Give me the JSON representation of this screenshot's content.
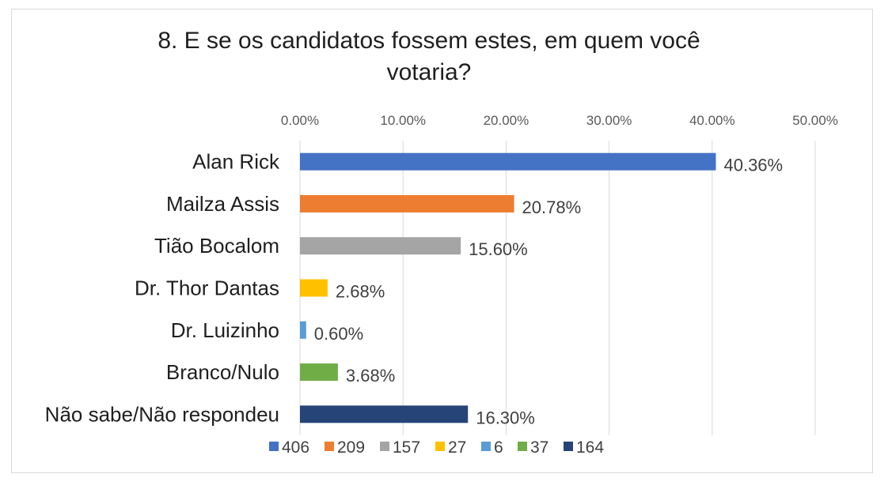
{
  "chart_data": {
    "type": "bar",
    "orientation": "horizontal",
    "title": "8. E se os candidatos fossem estes, em quem você votaria?",
    "title_lines": [
      "8. E se os candidatos fossem estes, em quem você",
      "votaria?"
    ],
    "categories": [
      "Alan Rick",
      "Mailza Assis",
      "Tião Bocalom",
      "Dr. Thor Dantas",
      "Dr. Luizinho",
      "Branco/Nulo",
      "Não sabe/Não respondeu"
    ],
    "values": [
      40.36,
      20.78,
      15.6,
      2.68,
      0.6,
      3.68,
      16.3
    ],
    "data_labels": [
      "40.36%",
      "20.78%",
      "15.60%",
      "2.68%",
      "0.60%",
      "3.68%",
      "16.30%"
    ],
    "colors": [
      "#4472c4",
      "#ed7d31",
      "#a5a5a5",
      "#ffc000",
      "#5b9bd5",
      "#70ad47",
      "#264478"
    ],
    "xlim": [
      0,
      50
    ],
    "x_ticks": [
      0,
      10,
      20,
      30,
      40,
      50
    ],
    "x_tick_labels": [
      "0.00%",
      "10.00%",
      "20.00%",
      "30.00%",
      "40.00%",
      "50.00%"
    ],
    "x_axis_position": "top",
    "grid": true,
    "legend_position": "bottom",
    "legend": [
      "406",
      "209",
      "157",
      "27",
      "6",
      "37",
      "164"
    ]
  }
}
